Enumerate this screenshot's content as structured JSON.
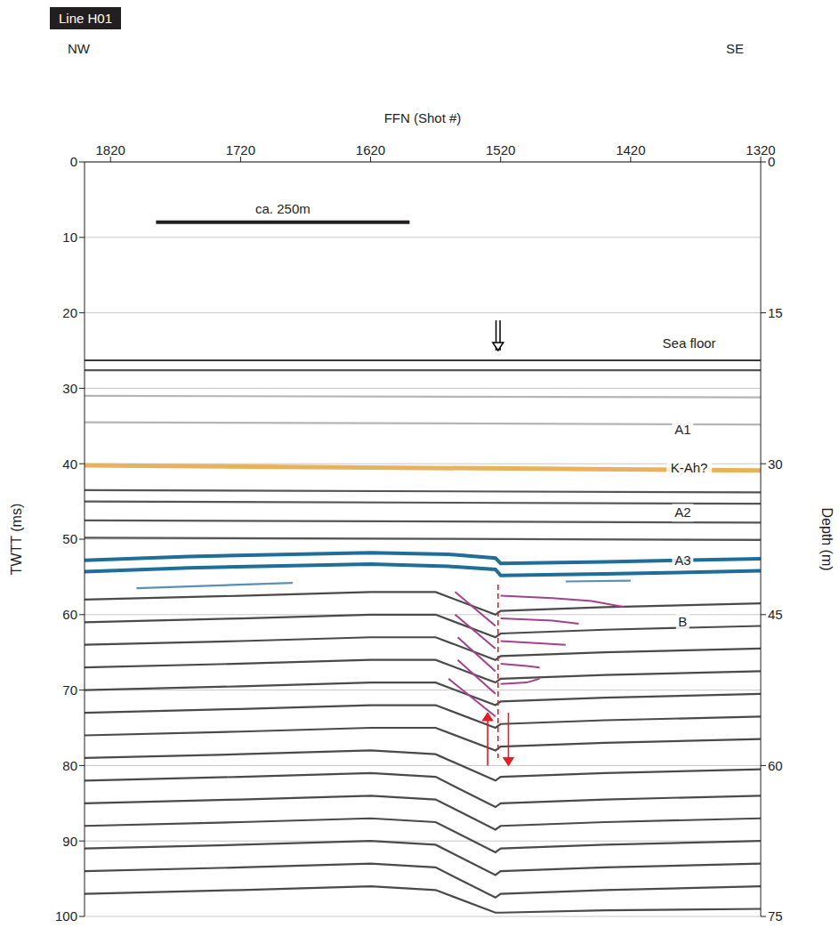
{
  "chart_data": {
    "type": "line",
    "title": "Line H01",
    "left_label": "NW",
    "right_label": "SE",
    "x_label": "FFN (Shot #)",
    "y_label": "TWTT (ms)",
    "y2_label": "Depth (m)",
    "xlim": [
      1840,
      1320
    ],
    "xticks": [
      1820,
      1720,
      1620,
      1520,
      1420,
      1320
    ],
    "ylim": [
      0,
      100
    ],
    "yticks": [
      0,
      10,
      20,
      30,
      40,
      50,
      60,
      70,
      80,
      90,
      100
    ],
    "y2lim": [
      0,
      75
    ],
    "y2ticks": [
      0,
      15,
      30,
      45,
      60,
      75
    ],
    "grid": true,
    "tick_labels": true,
    "series": [
      {
        "color": "#3a3a3a",
        "x": [
          1840,
          1320
        ],
        "values": [
          26.3,
          26.3
        ]
      },
      {
        "color": "#555555",
        "x": [
          1840,
          1320
        ],
        "values": [
          27.6,
          27.6
        ]
      },
      {
        "color": "#b5b5b5",
        "x": [
          1840,
          1320
        ],
        "values": [
          31,
          31.2
        ]
      },
      {
        "color": "#b5b5b5",
        "x": [
          1840,
          1320
        ],
        "values": [
          34.5,
          34.8
        ]
      },
      {
        "color": "#e8b15c",
        "x": [
          1840,
          1320
        ],
        "values": [
          40.2,
          40.9
        ]
      },
      {
        "color": "#555555",
        "x": [
          1840,
          1320
        ],
        "values": [
          43.5,
          43.8
        ]
      },
      {
        "color": "#555555",
        "x": [
          1840,
          1320
        ],
        "values": [
          45,
          45.3
        ]
      },
      {
        "color": "#555555",
        "x": [
          1840,
          1320
        ],
        "values": [
          47.5,
          47.8
        ]
      },
      {
        "color": "#555555",
        "x": [
          1840,
          1320
        ],
        "values": [
          49.8,
          50.1
        ]
      },
      {
        "color": "#1f6d99",
        "x": [
          1840,
          1760,
          1680,
          1620,
          1560,
          1524,
          1520,
          1440,
          1320
        ],
        "values": [
          52.8,
          52.3,
          52,
          51.8,
          52,
          52.5,
          53.2,
          53,
          52.6
        ]
      },
      {
        "color": "#1f6d99",
        "x": [
          1840,
          1760,
          1680,
          1620,
          1560,
          1524,
          1520,
          1440,
          1320
        ],
        "values": [
          54.3,
          53.8,
          53.5,
          53.3,
          53.6,
          54,
          54.8,
          54.6,
          54.2
        ]
      },
      {
        "color": "#5b8fb3",
        "x": [
          1800,
          1680
        ],
        "values": [
          56.5,
          55.8
        ]
      },
      {
        "color": "#5b8fb3",
        "x": [
          1470,
          1420
        ],
        "values": [
          55.6,
          55.5
        ]
      },
      {
        "color": "#4a4a4a",
        "x": [
          1840,
          1720,
          1620,
          1570,
          1524,
          1520,
          1440,
          1320
        ],
        "values": [
          58,
          57.5,
          57,
          57,
          60,
          59.5,
          59,
          58.5
        ]
      },
      {
        "color": "#4a4a4a",
        "x": [
          1840,
          1720,
          1620,
          1570,
          1524,
          1520,
          1440,
          1320
        ],
        "values": [
          61,
          60.5,
          60,
          60,
          63,
          62.5,
          62,
          61.5
        ]
      },
      {
        "color": "#4a4a4a",
        "x": [
          1840,
          1720,
          1620,
          1570,
          1524,
          1520,
          1440,
          1320
        ],
        "values": [
          64,
          63.5,
          63,
          63,
          66,
          65.5,
          65,
          64.5
        ]
      },
      {
        "color": "#4a4a4a",
        "x": [
          1840,
          1720,
          1620,
          1570,
          1524,
          1520,
          1440,
          1320
        ],
        "values": [
          67,
          66.5,
          66,
          66,
          69,
          68.5,
          68,
          67.5
        ]
      },
      {
        "color": "#4a4a4a",
        "x": [
          1840,
          1720,
          1620,
          1570,
          1524,
          1520,
          1440,
          1320
        ],
        "values": [
          70,
          69.5,
          69,
          69,
          72,
          71.5,
          71,
          70.5
        ]
      },
      {
        "color": "#4a4a4a",
        "x": [
          1840,
          1720,
          1620,
          1570,
          1524,
          1520,
          1440,
          1320
        ],
        "values": [
          73,
          72.5,
          72,
          72,
          75,
          74.5,
          74,
          73.5
        ]
      },
      {
        "color": "#4a4a4a",
        "x": [
          1840,
          1720,
          1620,
          1570,
          1524,
          1520,
          1440,
          1320
        ],
        "values": [
          76,
          75.5,
          75,
          75,
          78,
          77.5,
          77,
          76.5
        ]
      },
      {
        "color": "#4a4a4a",
        "x": [
          1840,
          1720,
          1620,
          1570,
          1524,
          1520,
          1440,
          1320
        ],
        "values": [
          79,
          78.5,
          78,
          78.5,
          82,
          81.5,
          81,
          80.5
        ]
      },
      {
        "color": "#4a4a4a",
        "x": [
          1840,
          1720,
          1620,
          1570,
          1524,
          1520,
          1440,
          1320
        ],
        "values": [
          82,
          81.5,
          81,
          81.5,
          85.5,
          85,
          84.5,
          84
        ]
      },
      {
        "color": "#4a4a4a",
        "x": [
          1840,
          1720,
          1620,
          1570,
          1524,
          1520,
          1440,
          1320
        ],
        "values": [
          85,
          84.5,
          84,
          84.5,
          88.5,
          88,
          87.5,
          87
        ]
      },
      {
        "color": "#4a4a4a",
        "x": [
          1840,
          1720,
          1620,
          1570,
          1524,
          1520,
          1440,
          1320
        ],
        "values": [
          88,
          87.5,
          87,
          87.5,
          91.5,
          91,
          90.5,
          90
        ]
      },
      {
        "color": "#4a4a4a",
        "x": [
          1840,
          1720,
          1620,
          1570,
          1524,
          1520,
          1440,
          1320
        ],
        "values": [
          91,
          90.5,
          90,
          90.5,
          94.5,
          94,
          93.5,
          93
        ]
      },
      {
        "color": "#4a4a4a",
        "x": [
          1840,
          1720,
          1620,
          1570,
          1524,
          1520,
          1440,
          1320
        ],
        "values": [
          94,
          93.5,
          93,
          93.5,
          97.5,
          97,
          96.5,
          96
        ]
      },
      {
        "color": "#4a4a4a",
        "x": [
          1840,
          1720,
          1620,
          1570,
          1524,
          1520,
          1440,
          1320
        ],
        "values": [
          97,
          96.5,
          96,
          96.5,
          99.5,
          99.5,
          99.2,
          99
        ]
      },
      {
        "color": "#a3418f",
        "x": [
          1555,
          1524
        ],
        "values": [
          57,
          61.5
        ]
      },
      {
        "color": "#a3418f",
        "x": [
          1555,
          1524
        ],
        "values": [
          60,
          64.5
        ]
      },
      {
        "color": "#a3418f",
        "x": [
          1553,
          1524
        ],
        "values": [
          63,
          67.5
        ]
      },
      {
        "color": "#a3418f",
        "x": [
          1553,
          1524
        ],
        "values": [
          66,
          70.5
        ]
      },
      {
        "color": "#a3418f",
        "x": [
          1560,
          1524
        ],
        "values": [
          68.5,
          73.5
        ]
      },
      {
        "color": "#a3418f",
        "x": [
          1520,
          1480,
          1450,
          1425
        ],
        "values": [
          57.5,
          57.8,
          58.2,
          59
        ]
      },
      {
        "color": "#a3418f",
        "x": [
          1520,
          1480,
          1460
        ],
        "values": [
          60.5,
          60.8,
          61.2
        ]
      },
      {
        "color": "#a3418f",
        "x": [
          1520,
          1490,
          1470
        ],
        "values": [
          63.5,
          63.8,
          64
        ]
      },
      {
        "color": "#a3418f",
        "x": [
          1520,
          1500,
          1490
        ],
        "values": [
          66.5,
          66.8,
          67
        ]
      },
      {
        "color": "#a3418f",
        "x": [
          1520,
          1500,
          1490
        ],
        "values": [
          69.2,
          69,
          68.5
        ]
      },
      {
        "color": "#e01f26",
        "line_style": "dashed",
        "x": [
          1522,
          1522
        ],
        "values": [
          56,
          79
        ]
      }
    ],
    "arrows": [
      {
        "x": 1530,
        "from": 80,
        "to": 73,
        "color": "#e01f26"
      },
      {
        "x": 1514,
        "from": 73,
        "to": 80,
        "color": "#e01f26"
      },
      {
        "x": 1522,
        "from": 21,
        "to": 25,
        "color": "#000000",
        "marker": "hollow"
      }
    ],
    "scale_bar": {
      "label": "ca. 250m",
      "x": [
        1785,
        1590
      ],
      "y": 8
    },
    "annotations": [
      {
        "text": "Sea floor",
        "x": 1375,
        "y": 24
      },
      {
        "text": "A1",
        "x": 1380,
        "y": 35.5
      },
      {
        "text": "K-Ah?",
        "x": 1375,
        "y": 40.6
      },
      {
        "text": "A2",
        "x": 1380,
        "y": 46.5
      },
      {
        "text": "A3",
        "x": 1380,
        "y": 52.8
      },
      {
        "text": "B",
        "x": 1380,
        "y": 61
      }
    ]
  }
}
